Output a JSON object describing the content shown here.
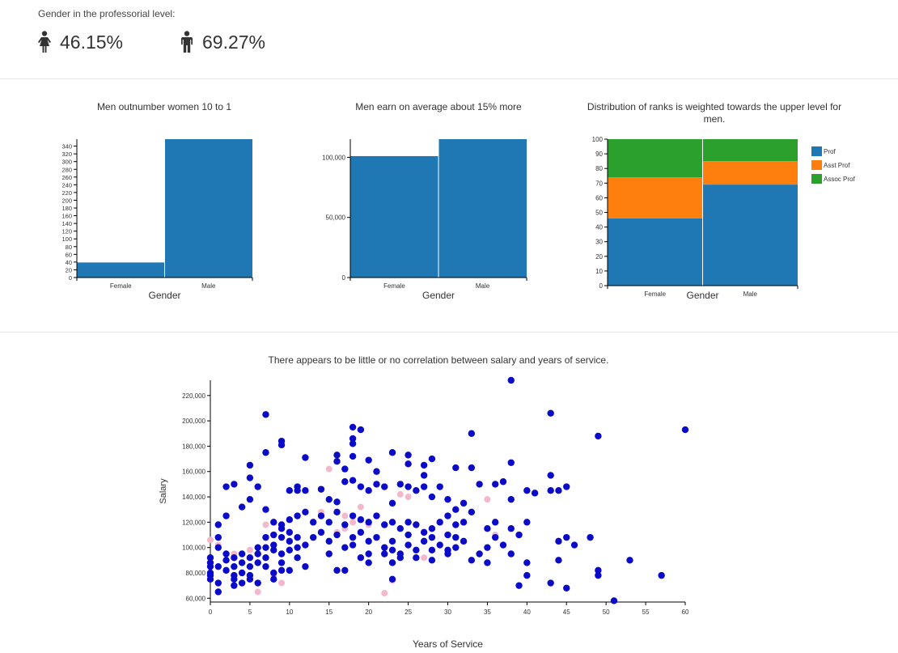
{
  "header": {
    "title": "Gender in the professorial level:",
    "female_value": "46.15%",
    "male_value": "69.27%",
    "female_icon": "female-person-icon",
    "male_icon": "male-person-icon"
  },
  "colors": {
    "bar": "#1f77b4",
    "prof": "#1f77b4",
    "asst": "#ff7f0e",
    "assoc": "#2ca02c",
    "scatter_male": "#0a0ac8",
    "scatter_female": "#f4b8cc"
  },
  "chart_data": [
    {
      "type": "bar",
      "title": "Men outnumber women 10 to 1",
      "xlabel": "Gender",
      "categories": [
        "Female",
        "Male"
      ],
      "values": [
        39,
        358
      ],
      "ylim": [
        0,
        358
      ],
      "yticks": [
        0,
        20,
        40,
        60,
        80,
        100,
        120,
        140,
        160,
        180,
        200,
        220,
        240,
        260,
        280,
        300,
        320,
        340
      ]
    },
    {
      "type": "bar",
      "title": "Men earn on average about 15% more",
      "xlabel": "Gender",
      "categories": [
        "Female",
        "Male"
      ],
      "values": [
        101002,
        115090
      ],
      "ylim": [
        0,
        115090
      ],
      "yticks": [
        0,
        50000,
        100000
      ],
      "ytick_labels": [
        "0",
        "50,000",
        "100,000"
      ]
    },
    {
      "type": "bar",
      "stacked": true,
      "title": "Distribution of ranks is weighted towards the upper level for men.",
      "xlabel": "Gender",
      "categories": [
        "Female",
        "Male"
      ],
      "ylim": [
        0,
        100
      ],
      "yticks": [
        0,
        10,
        20,
        30,
        40,
        50,
        60,
        70,
        80,
        90,
        100
      ],
      "series": [
        {
          "name": "Prof",
          "values": [
            46,
            69
          ]
        },
        {
          "name": "Asst Prof",
          "values": [
            28,
            16
          ]
        },
        {
          "name": "Assoc Prof",
          "values": [
            26,
            15
          ]
        }
      ],
      "legend": "right"
    },
    {
      "type": "scatter",
      "title": "There appears to be little or no correlation between salary and years of service.",
      "xlabel": "Years of Service",
      "ylabel": "Salary",
      "xlim": [
        0,
        60
      ],
      "ylim": [
        57000,
        232000
      ],
      "xticks": [
        0,
        5,
        10,
        15,
        20,
        25,
        30,
        35,
        40,
        45,
        50,
        55,
        60
      ],
      "yticks": [
        60000,
        80000,
        100000,
        120000,
        140000,
        160000,
        180000,
        200000,
        220000
      ],
      "ytick_labels": [
        "60,000",
        "80,000",
        "100,000",
        "120,000",
        "140,000",
        "160,000",
        "180,000",
        "200,000",
        "220,000"
      ],
      "male": [
        [
          7,
          205
        ],
        [
          9,
          184
        ],
        [
          9,
          181
        ],
        [
          38,
          232
        ],
        [
          43,
          206
        ],
        [
          49,
          188
        ],
        [
          60,
          193
        ],
        [
          18,
          195
        ],
        [
          18,
          186
        ],
        [
          18,
          182
        ],
        [
          19,
          193
        ],
        [
          12,
          171
        ],
        [
          16,
          173
        ],
        [
          16,
          168
        ],
        [
          17,
          162
        ],
        [
          18,
          172
        ],
        [
          20,
          169
        ],
        [
          21,
          160
        ],
        [
          23,
          175
        ],
        [
          25,
          173
        ],
        [
          25,
          166
        ],
        [
          27,
          165
        ],
        [
          27,
          157
        ],
        [
          28,
          170
        ],
        [
          31,
          163
        ],
        [
          33,
          190
        ],
        [
          33,
          163
        ],
        [
          38,
          167
        ],
        [
          5,
          165
        ],
        [
          5,
          155
        ],
        [
          3,
          150
        ],
        [
          2,
          148
        ],
        [
          6,
          148
        ],
        [
          7,
          175
        ],
        [
          10,
          145
        ],
        [
          11,
          148
        ],
        [
          11,
          145
        ],
        [
          12,
          145
        ],
        [
          14,
          146
        ],
        [
          15,
          138
        ],
        [
          16,
          136
        ],
        [
          17,
          152
        ],
        [
          18,
          153
        ],
        [
          19,
          148
        ],
        [
          20,
          145
        ],
        [
          21,
          150
        ],
        [
          22,
          148
        ],
        [
          23,
          135
        ],
        [
          24,
          150
        ],
        [
          25,
          148
        ],
        [
          26,
          145
        ],
        [
          27,
          148
        ],
        [
          28,
          140
        ],
        [
          29,
          148
        ],
        [
          30,
          138
        ],
        [
          31,
          130
        ],
        [
          32,
          135
        ],
        [
          34,
          150
        ],
        [
          36,
          150
        ],
        [
          37,
          152
        ],
        [
          38,
          138
        ],
        [
          40,
          145
        ],
        [
          41,
          143
        ],
        [
          43,
          157
        ],
        [
          43,
          145
        ],
        [
          44,
          145
        ],
        [
          45,
          148
        ],
        [
          2,
          125
        ],
        [
          4,
          132
        ],
        [
          5,
          138
        ],
        [
          7,
          130
        ],
        [
          8,
          120
        ],
        [
          9,
          118
        ],
        [
          10,
          122
        ],
        [
          11,
          125
        ],
        [
          12,
          128
        ],
        [
          13,
          120
        ],
        [
          14,
          125
        ],
        [
          15,
          120
        ],
        [
          16,
          128
        ],
        [
          17,
          118
        ],
        [
          18,
          125
        ],
        [
          19,
          122
        ],
        [
          20,
          120
        ],
        [
          21,
          125
        ],
        [
          22,
          118
        ],
        [
          23,
          120
        ],
        [
          24,
          115
        ],
        [
          25,
          120
        ],
        [
          26,
          118
        ],
        [
          27,
          112
        ],
        [
          28,
          115
        ],
        [
          29,
          120
        ],
        [
          30,
          125
        ],
        [
          31,
          118
        ],
        [
          32,
          120
        ],
        [
          33,
          128
        ],
        [
          35,
          115
        ],
        [
          36,
          120
        ],
        [
          38,
          115
        ],
        [
          39,
          110
        ],
        [
          40,
          120
        ],
        [
          1,
          118
        ],
        [
          1,
          108
        ],
        [
          1,
          100
        ],
        [
          0,
          92
        ],
        [
          0,
          88
        ],
        [
          0,
          85
        ],
        [
          0,
          80
        ],
        [
          0,
          78
        ],
        [
          0,
          75
        ],
        [
          1,
          72
        ],
        [
          1,
          65
        ],
        [
          1,
          85
        ],
        [
          2,
          90
        ],
        [
          2,
          95
        ],
        [
          2,
          82
        ],
        [
          3,
          78
        ],
        [
          3,
          75
        ],
        [
          3,
          85
        ],
        [
          3,
          92
        ],
        [
          4,
          95
        ],
        [
          4,
          88
        ],
        [
          4,
          80
        ],
        [
          5,
          92
        ],
        [
          5,
          85
        ],
        [
          5,
          78
        ],
        [
          6,
          100
        ],
        [
          6,
          95
        ],
        [
          6,
          88
        ],
        [
          7,
          108
        ],
        [
          7,
          100
        ],
        [
          7,
          92
        ],
        [
          7,
          85
        ],
        [
          8,
          110
        ],
        [
          8,
          102
        ],
        [
          8,
          98
        ],
        [
          8,
          80
        ],
        [
          9,
          115
        ],
        [
          9,
          108
        ],
        [
          9,
          95
        ],
        [
          9,
          88
        ],
        [
          10,
          112
        ],
        [
          10,
          105
        ],
        [
          10,
          98
        ],
        [
          10,
          82
        ],
        [
          11,
          108
        ],
        [
          11,
          100
        ],
        [
          11,
          92
        ],
        [
          12,
          102
        ],
        [
          13,
          108
        ],
        [
          14,
          112
        ],
        [
          15,
          105
        ],
        [
          15,
          95
        ],
        [
          16,
          110
        ],
        [
          17,
          100
        ],
        [
          18,
          108
        ],
        [
          18,
          102
        ],
        [
          19,
          112
        ],
        [
          20,
          105
        ],
        [
          20,
          95
        ],
        [
          21,
          108
        ],
        [
          22,
          100
        ],
        [
          22,
          95
        ],
        [
          23,
          105
        ],
        [
          23,
          98
        ],
        [
          23,
          88
        ],
        [
          24,
          92
        ],
        [
          25,
          110
        ],
        [
          25,
          102
        ],
        [
          26,
          98
        ],
        [
          27,
          105
        ],
        [
          28,
          108
        ],
        [
          28,
          98
        ],
        [
          29,
          102
        ],
        [
          30,
          110
        ],
        [
          30,
          95
        ],
        [
          31,
          108
        ],
        [
          31,
          100
        ],
        [
          32,
          105
        ],
        [
          33,
          90
        ],
        [
          34,
          95
        ],
        [
          35,
          100
        ],
        [
          35,
          88
        ],
        [
          36,
          108
        ],
        [
          37,
          102
        ],
        [
          38,
          95
        ],
        [
          39,
          70
        ],
        [
          40,
          88
        ],
        [
          40,
          78
        ],
        [
          43,
          72
        ],
        [
          44,
          90
        ],
        [
          44,
          105
        ],
        [
          45,
          108
        ],
        [
          45,
          68
        ],
        [
          46,
          102
        ],
        [
          48,
          108
        ],
        [
          49,
          82
        ],
        [
          49,
          78
        ],
        [
          51,
          58
        ],
        [
          53,
          90
        ],
        [
          57,
          78
        ],
        [
          3,
          70
        ],
        [
          4,
          72
        ],
        [
          5,
          75
        ],
        [
          6,
          72
        ],
        [
          8,
          75
        ],
        [
          9,
          82
        ],
        [
          12,
          85
        ],
        [
          16,
          82
        ],
        [
          17,
          82
        ],
        [
          19,
          92
        ],
        [
          20,
          88
        ],
        [
          23,
          75
        ],
        [
          24,
          95
        ],
        [
          26,
          92
        ],
        [
          28,
          90
        ],
        [
          30,
          98
        ]
      ],
      "female": [
        [
          0,
          106
        ],
        [
          1,
          102
        ],
        [
          3,
          95
        ],
        [
          5,
          98
        ],
        [
          6,
          65
        ],
        [
          7,
          118
        ],
        [
          8,
          78
        ],
        [
          9,
          72
        ],
        [
          11,
          92
        ],
        [
          14,
          128
        ],
        [
          15,
          162
        ],
        [
          17,
          125
        ],
        [
          18,
          120
        ],
        [
          19,
          132
        ],
        [
          20,
          118
        ],
        [
          22,
          64
        ],
        [
          23,
          74
        ],
        [
          24,
          142
        ],
        [
          25,
          140
        ],
        [
          26,
          145
        ],
        [
          27,
          92
        ],
        [
          35,
          138
        ],
        [
          36,
          110
        ],
        [
          16,
          112
        ],
        [
          17,
          115
        ]
      ]
    }
  ]
}
